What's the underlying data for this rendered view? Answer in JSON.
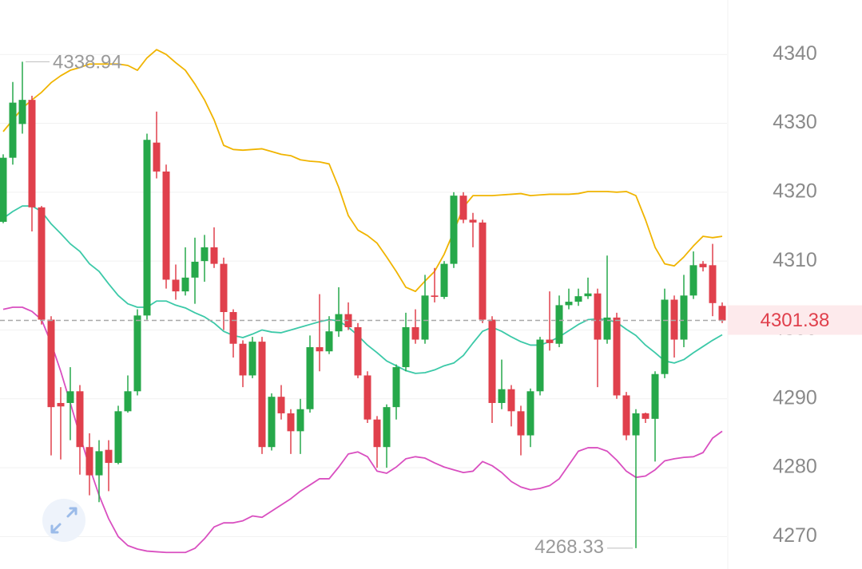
{
  "chart_data": {
    "type": "candlestick",
    "up_color": "#26a84a",
    "down_color": "#e0404c",
    "open": [
      4315.7,
      4325.0,
      4329.9,
      4333.4,
      4317.8,
      4301.5,
      4289.4,
      4289.4,
      4291.1,
      4283.0,
      4278.9,
      4282.6,
      4280.7,
      4288.2,
      4291.1,
      4302.1,
      4327.2,
      4323.0,
      4307.3,
      4305.6,
      4307.6,
      4310.0,
      4312.0,
      4309.6,
      4302.6,
      4298.0,
      4293.4,
      4298.3,
      4283.0,
      4290.3,
      4287.9,
      4285.3,
      4288.5,
      4297.5,
      4296.9,
      4299.8,
      4302.3,
      4300.4,
      4293.4,
      4287.0,
      4283.0,
      4288.8,
      4294.6,
      4300.4,
      4298.6,
      4305.0,
      4304.8,
      4309.6,
      4319.5,
      4316.0,
      4315.6,
      4301.5,
      4289.4,
      4291.4,
      4288.2,
      4284.7,
      4291.1,
      4298.6,
      4298.0,
      4303.6,
      4304.1,
      4304.9,
      4305.3,
      4298.6,
      4301.8,
      4290.5,
      4284.7,
      4287.9,
      4287.1,
      4293.6,
      4304.4,
      4298.6,
      4305.0,
      4309.6,
      4309.4,
      4303.5
    ],
    "high": [
      4325.5,
      4336.0,
      4338.94,
      4334.0,
      4318.0,
      4302.0,
      4291.7,
      4294.6,
      4292.0,
      4285.0,
      4284.0,
      4284.0,
      4289.0,
      4293.4,
      4303.0,
      4328.5,
      4331.7,
      4324.0,
      4309.5,
      4312.0,
      4313.4,
      4313.8,
      4314.9,
      4310.5,
      4303.0,
      4298.5,
      4299.0,
      4299.0,
      4290.8,
      4292.0,
      4288.5,
      4290.0,
      4299.2,
      4305.2,
      4302.0,
      4306.2,
      4304.0,
      4301.0,
      4294.0,
      4287.5,
      4289.2,
      4295.0,
      4302.5,
      4303.0,
      4308.0,
      4309.0,
      4310.0,
      4320.0,
      4320.0,
      4317.0,
      4316.0,
      4302.0,
      4295.7,
      4292.0,
      4289.0,
      4291.5,
      4299.0,
      4305.6,
      4305.0,
      4306.0,
      4306.0,
      4307.6,
      4306.0,
      4310.8,
      4302.5,
      4291.0,
      4288.5,
      4288.0,
      4294.0,
      4306.0,
      4305.0,
      4308.0,
      4311.4,
      4310.0,
      4312.5,
      4304.0
    ],
    "low": [
      4315.5,
      4324.0,
      4328.5,
      4314.3,
      4300.8,
      4281.8,
      4281.2,
      4284.0,
      4279.0,
      4276.0,
      4275.0,
      4276.6,
      4280.5,
      4288.0,
      4290.5,
      4301.5,
      4322.0,
      4306.0,
      4304.4,
      4305.0,
      4303.8,
      4307.0,
      4309.0,
      4300.0,
      4296.0,
      4291.7,
      4293.0,
      4282.0,
      4282.5,
      4287.0,
      4282.0,
      4282.0,
      4288.0,
      4294.0,
      4296.5,
      4299.0,
      4300.0,
      4293.0,
      4286.5,
      4280.0,
      4280.0,
      4287.0,
      4294.0,
      4298.0,
      4298.0,
      4304.0,
      4304.5,
      4309.0,
      4315.5,
      4312.0,
      4301.0,
      4286.5,
      4288.5,
      4286.0,
      4281.8,
      4283.0,
      4290.5,
      4297.0,
      4297.5,
      4303.0,
      4303.5,
      4304.5,
      4291.7,
      4298.0,
      4290.0,
      4284.0,
      4268.33,
      4286.5,
      4280.9,
      4293.0,
      4296.0,
      4297.5,
      4304.5,
      4308.5,
      4302.0,
      4301.0
    ],
    "close": [
      4325.0,
      4333.0,
      4333.4,
      4317.8,
      4301.5,
      4288.8,
      4288.9,
      4291.1,
      4283.0,
      4278.9,
      4282.4,
      4280.7,
      4288.2,
      4291.1,
      4302.1,
      4327.6,
      4323.0,
      4307.3,
      4305.6,
      4307.6,
      4309.9,
      4312.0,
      4309.6,
      4302.6,
      4298.0,
      4293.4,
      4298.3,
      4283.0,
      4290.3,
      4287.9,
      4285.3,
      4288.5,
      4297.5,
      4296.9,
      4299.8,
      4302.3,
      4300.4,
      4293.4,
      4287.0,
      4283.0,
      4288.8,
      4294.6,
      4300.4,
      4298.6,
      4305.0,
      4304.8,
      4309.6,
      4319.5,
      4316.0,
      4315.6,
      4301.5,
      4289.4,
      4291.4,
      4288.2,
      4284.7,
      4291.1,
      4298.6,
      4298.1,
      4303.6,
      4304.1,
      4304.9,
      4305.3,
      4298.6,
      4301.8,
      4290.5,
      4284.7,
      4287.9,
      4287.1,
      4293.6,
      4304.4,
      4298.6,
      4305.0,
      4309.4,
      4309.1,
      4303.9,
      4301.38
    ],
    "lines": [
      {
        "color": "#f0b400",
        "values": [
          4328.8,
          4330.5,
          4332.2,
          4333.4,
          4334.5,
          4335.9,
          4336.9,
          4337.7,
          4338.1,
          4338.6,
          4338.6,
          4338.6,
          4338.6,
          4338.4,
          4337.7,
          4339.5,
          4340.7,
          4340.0,
          4338.8,
          4337.7,
          4335.7,
          4333.4,
          4330.5,
          4326.8,
          4326.2,
          4326.1,
          4326.2,
          4326.3,
          4325.9,
          4325.5,
          4325.3,
          4324.7,
          4324.5,
          4324.4,
          4324.1,
          4320.7,
          4316.6,
          4314.5,
          4313.7,
          4312.6,
          4310.6,
          4308.5,
          4306.2,
          4305.6,
          4307.1,
          4308.5,
          4311.0,
          4314.3,
          4317.8,
          4319.5,
          4319.5,
          4319.5,
          4319.6,
          4319.7,
          4319.8,
          4319.5,
          4319.6,
          4319.7,
          4319.7,
          4319.7,
          4319.8,
          4320.1,
          4320.1,
          4320.1,
          4320.0,
          4320.1,
          4319.5,
          4316.0,
          4312.0,
          4309.6,
          4309.3,
          4310.6,
          4312.2,
          4313.6,
          4313.4,
          4313.6
        ]
      },
      {
        "color": "#3cc9a8",
        "values": [
          4316.2,
          4317.2,
          4318.0,
          4318.0,
          4317.2,
          4315.4,
          4314.0,
          4312.5,
          4311.4,
          4309.6,
          4308.5,
          4306.7,
          4305.0,
          4303.8,
          4303.3,
          4303.3,
          4304.2,
          4304.2,
          4303.6,
          4303.2,
          4302.5,
          4301.9,
          4301.0,
          4299.8,
          4299.2,
          4298.9,
          4299.4,
          4300.0,
          4299.7,
          4299.6,
          4300.0,
          4300.4,
          4300.8,
          4301.2,
          4301.5,
          4301.3,
          4300.4,
          4299.2,
          4297.8,
          4296.7,
          4295.5,
          4294.8,
          4294.1,
          4293.7,
          4293.8,
          4294.2,
          4294.8,
          4295.2,
          4296.3,
          4298.1,
          4299.8,
          4300.4,
          4299.8,
          4299.0,
          4298.3,
          4297.8,
          4297.8,
          4298.3,
          4299.0,
          4299.9,
          4300.8,
          4301.5,
          4301.6,
          4301.5,
          4301.1,
          4300.1,
          4299.2,
          4297.8,
          4296.7,
          4295.5,
          4295.2,
          4295.7,
          4296.7,
          4297.6,
          4298.5,
          4299.3
        ]
      },
      {
        "color": "#d94fc0",
        "values": [
          4303.0,
          4303.3,
          4303.3,
          4302.7,
          4301.5,
          4298.1,
          4294.0,
          4289.4,
          4284.7,
          4280.1,
          4276.0,
          4272.6,
          4270.0,
          4268.7,
          4268.2,
          4267.9,
          4267.8,
          4267.7,
          4267.7,
          4267.7,
          4268.3,
          4269.7,
          4271.4,
          4272.0,
          4272.0,
          4272.3,
          4273.0,
          4272.8,
          4273.7,
          4274.6,
          4275.5,
          4276.6,
          4277.5,
          4278.4,
          4278.4,
          4280.1,
          4282.0,
          4282.3,
          4281.6,
          4279.5,
          4279.2,
          4280.1,
          4281.3,
          4281.6,
          4281.4,
          4280.7,
          4280.1,
          4279.7,
          4279.3,
          4279.5,
          4280.9,
          4280.3,
          4279.3,
          4278.0,
          4277.2,
          4276.8,
          4277.0,
          4277.4,
          4278.4,
          4280.4,
          4282.4,
          4282.9,
          4282.9,
          4282.4,
          4281.1,
          4279.5,
          4278.6,
          4278.8,
          4279.7,
          4281.0,
          4281.3,
          4281.5,
          4281.6,
          4282.2,
          4284.3,
          4285.3
        ]
      }
    ],
    "ylim": [
      4265.3,
      4347.9
    ],
    "yticks": [
      4270,
      4280,
      4290,
      4300,
      4310,
      4320,
      4330,
      4340
    ],
    "grid": true
  }
}
